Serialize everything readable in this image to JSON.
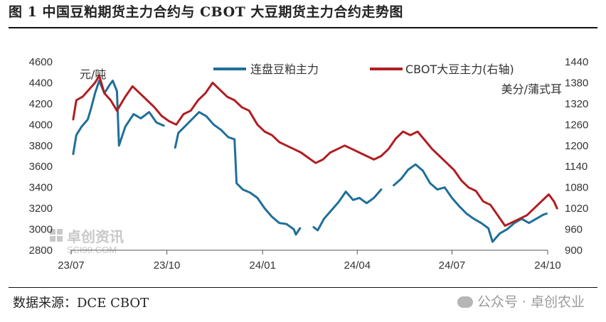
{
  "header": {
    "title": "图 1  中国豆粕期货主力合约与 CBOT 大豆期货主力合约走势图"
  },
  "footer": {
    "source": "数据来源：DCE   CBOT",
    "watermark_brand": "公众号 · 卓创农业"
  },
  "watermark": {
    "logo_text": "卓创资讯",
    "url": "SCI99.COM",
    "icon": "sci99-logo-icon"
  },
  "colors": {
    "dce_series": "#1f6f99",
    "cbot_series": "#b01e22",
    "axis": "#555555"
  },
  "chart_data": {
    "type": "line",
    "left_axis": {
      "unit": "元/吨",
      "range": [
        2800,
        4600
      ],
      "ticks": [
        2800,
        3000,
        3200,
        3400,
        3600,
        3800,
        4000,
        4200,
        4400,
        4600
      ]
    },
    "right_axis": {
      "unit": "美分/蒲式耳",
      "range": [
        900,
        1440
      ],
      "ticks": [
        900,
        960,
        1020,
        1080,
        1140,
        1200,
        1260,
        1320,
        1380,
        1440
      ]
    },
    "x_ticks": [
      "23/07",
      "23/10",
      "24/01",
      "24/04",
      "24/07",
      "24/10"
    ],
    "grid": false,
    "legend_position": "top",
    "series": [
      {
        "name": "连盘豆粕主力",
        "axis": "left",
        "points": [
          [
            "2023-07-03",
            3720
          ],
          [
            "2023-07-06",
            3900
          ],
          [
            "2023-07-11",
            3980
          ],
          [
            "2023-07-17",
            4050
          ],
          [
            "2023-07-20",
            4150
          ],
          [
            "2023-07-24",
            4300
          ],
          [
            "2023-07-28",
            4420
          ],
          [
            "2023-08-02",
            4300
          ],
          [
            "2023-08-07",
            4380
          ],
          [
            "2023-08-10",
            4420
          ],
          [
            "2023-08-14",
            4320
          ],
          [
            "2023-08-16",
            3800
          ],
          [
            "2023-08-22",
            3980
          ],
          [
            "2023-08-30",
            4100
          ],
          [
            "2023-09-06",
            4060
          ],
          [
            "2023-09-14",
            4120
          ],
          [
            "2023-09-21",
            4020
          ],
          [
            "2023-09-28",
            3990
          ],
          [
            "2023-10-03",
            null
          ],
          [
            "2023-10-09",
            3780
          ],
          [
            "2023-10-12",
            3920
          ],
          [
            "2023-10-18",
            3980
          ],
          [
            "2023-10-25",
            4050
          ],
          [
            "2023-11-01",
            4120
          ],
          [
            "2023-11-08",
            4080
          ],
          [
            "2023-11-15",
            4000
          ],
          [
            "2023-11-22",
            3950
          ],
          [
            "2023-11-29",
            3880
          ],
          [
            "2023-12-05",
            3860
          ],
          [
            "2023-12-07",
            3440
          ],
          [
            "2023-12-13",
            3380
          ],
          [
            "2023-12-20",
            3350
          ],
          [
            "2023-12-27",
            3300
          ],
          [
            "2024-01-03",
            3200
          ],
          [
            "2024-01-10",
            3120
          ],
          [
            "2024-01-17",
            3060
          ],
          [
            "2024-01-24",
            3050
          ],
          [
            "2024-01-31",
            3000
          ],
          [
            "2024-02-02",
            2950
          ],
          [
            "2024-02-06",
            3010
          ],
          [
            "2024-02-08",
            null
          ],
          [
            "2024-02-19",
            3020
          ],
          [
            "2024-02-23",
            2990
          ],
          [
            "2024-02-29",
            3100
          ],
          [
            "2024-03-07",
            3180
          ],
          [
            "2024-03-14",
            3260
          ],
          [
            "2024-03-21",
            3360
          ],
          [
            "2024-03-28",
            3280
          ],
          [
            "2024-04-03",
            3300
          ],
          [
            "2024-04-10",
            3250
          ],
          [
            "2024-04-17",
            3300
          ],
          [
            "2024-04-24",
            3380
          ],
          [
            "2024-05-01",
            null
          ],
          [
            "2024-05-06",
            3420
          ],
          [
            "2024-05-13",
            3480
          ],
          [
            "2024-05-20",
            3570
          ],
          [
            "2024-05-27",
            3620
          ],
          [
            "2024-06-03",
            3560
          ],
          [
            "2024-06-10",
            3440
          ],
          [
            "2024-06-17",
            3380
          ],
          [
            "2024-06-24",
            3400
          ],
          [
            "2024-07-01",
            3300
          ],
          [
            "2024-07-08",
            3220
          ],
          [
            "2024-07-15",
            3150
          ],
          [
            "2024-07-22",
            3100
          ],
          [
            "2024-07-29",
            3060
          ],
          [
            "2024-08-05",
            3010
          ],
          [
            "2024-08-09",
            2880
          ],
          [
            "2024-08-16",
            2960
          ],
          [
            "2024-08-23",
            3000
          ],
          [
            "2024-08-30",
            3060
          ],
          [
            "2024-09-06",
            3100
          ],
          [
            "2024-09-13",
            3060
          ],
          [
            "2024-09-20",
            3100
          ],
          [
            "2024-09-27",
            3140
          ],
          [
            "2024-09-30",
            3150
          ]
        ]
      },
      {
        "name": "CBOT大豆主力(右轴)",
        "axis": "right",
        "points": [
          [
            "2023-07-03",
            1275
          ],
          [
            "2023-07-06",
            1330
          ],
          [
            "2023-07-12",
            1340
          ],
          [
            "2023-07-18",
            1360
          ],
          [
            "2023-07-24",
            1380
          ],
          [
            "2023-07-28",
            1400
          ],
          [
            "2023-08-02",
            1350
          ],
          [
            "2023-08-08",
            1330
          ],
          [
            "2023-08-14",
            1300
          ],
          [
            "2023-08-22",
            1340
          ],
          [
            "2023-08-29",
            1370
          ],
          [
            "2023-09-05",
            1350
          ],
          [
            "2023-09-12",
            1330
          ],
          [
            "2023-09-19",
            1310
          ],
          [
            "2023-09-26",
            1285
          ],
          [
            "2023-10-03",
            1270
          ],
          [
            "2023-10-10",
            1260
          ],
          [
            "2023-10-17",
            1290
          ],
          [
            "2023-10-24",
            1300
          ],
          [
            "2023-10-31",
            1330
          ],
          [
            "2023-11-07",
            1350
          ],
          [
            "2023-11-14",
            1380
          ],
          [
            "2023-11-21",
            1360
          ],
          [
            "2023-11-28",
            1340
          ],
          [
            "2023-12-05",
            1330
          ],
          [
            "2023-12-12",
            1310
          ],
          [
            "2023-12-19",
            1300
          ],
          [
            "2023-12-27",
            1260
          ],
          [
            "2024-01-03",
            1240
          ],
          [
            "2024-01-10",
            1230
          ],
          [
            "2024-01-17",
            1210
          ],
          [
            "2024-01-24",
            1200
          ],
          [
            "2024-01-31",
            1190
          ],
          [
            "2024-02-07",
            1180
          ],
          [
            "2024-02-14",
            1165
          ],
          [
            "2024-02-21",
            1150
          ],
          [
            "2024-02-28",
            1160
          ],
          [
            "2024-03-06",
            1180
          ],
          [
            "2024-03-13",
            1190
          ],
          [
            "2024-03-20",
            1200
          ],
          [
            "2024-03-27",
            1190
          ],
          [
            "2024-04-03",
            1180
          ],
          [
            "2024-04-10",
            1170
          ],
          [
            "2024-04-17",
            1160
          ],
          [
            "2024-04-24",
            1170
          ],
          [
            "2024-05-01",
            1190
          ],
          [
            "2024-05-08",
            1220
          ],
          [
            "2024-05-15",
            1240
          ],
          [
            "2024-05-22",
            1230
          ],
          [
            "2024-05-29",
            1240
          ],
          [
            "2024-06-05",
            1215
          ],
          [
            "2024-06-12",
            1190
          ],
          [
            "2024-06-19",
            1170
          ],
          [
            "2024-06-26",
            1150
          ],
          [
            "2024-07-03",
            1130
          ],
          [
            "2024-07-10",
            1100
          ],
          [
            "2024-07-17",
            1080
          ],
          [
            "2024-07-24",
            1070
          ],
          [
            "2024-07-31",
            1040
          ],
          [
            "2024-08-07",
            1030
          ],
          [
            "2024-08-14",
            1000
          ],
          [
            "2024-08-21",
            970
          ],
          [
            "2024-08-28",
            980
          ],
          [
            "2024-09-04",
            990
          ],
          [
            "2024-09-11",
            1000
          ],
          [
            "2024-09-18",
            1020
          ],
          [
            "2024-09-25",
            1040
          ],
          [
            "2024-10-02",
            1060
          ],
          [
            "2024-10-07",
            1040
          ],
          [
            "2024-10-10",
            1020
          ]
        ]
      }
    ]
  }
}
